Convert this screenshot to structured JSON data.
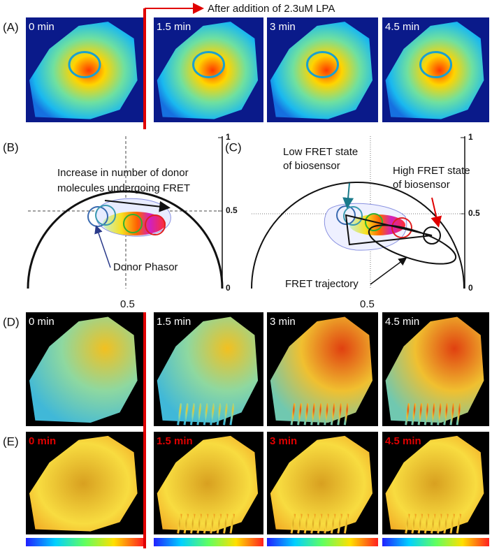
{
  "annotation": "After addition of 2.3uM LPA",
  "panel_a": {
    "label": "(A)",
    "times": [
      "0 min",
      "1.5 min",
      "3 min",
      "4.5 min"
    ]
  },
  "panel_b": {
    "label": "(B)",
    "axis_ticks": [
      "1",
      "0.5",
      "0"
    ],
    "x_label": "0.5",
    "note": [
      "Increase in number of donor",
      "molecules undergoing FRET"
    ],
    "donor": "Donor Phasor"
  },
  "panel_c": {
    "label": "(C)",
    "axis_ticks": [
      "1",
      "0.5",
      "0"
    ],
    "x_label": "0.5",
    "low_state": [
      "Low FRET state",
      "of biosensor"
    ],
    "high_state": [
      "High FRET state",
      "of biosensor"
    ],
    "trajectory": "FRET trajectory"
  },
  "panel_d": {
    "label": "(D)",
    "times": [
      "0 min",
      "1.5 min",
      "3 min",
      "4.5 min"
    ]
  },
  "panel_e": {
    "label": "(E)",
    "times": [
      "0 min",
      "1.5 min",
      "3 min",
      "4.5 min"
    ]
  }
}
